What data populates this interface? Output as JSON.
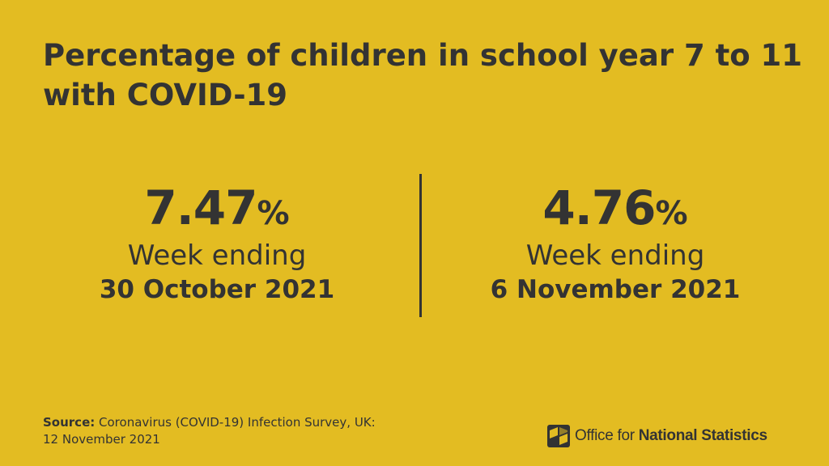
{
  "title": "Percentage of children in school year 7 to 11 with COVID-19",
  "stats": [
    {
      "value": "7.47",
      "unit": "%",
      "label": "Week ending",
      "date": "30 October 2021"
    },
    {
      "value": "4.76",
      "unit": "%",
      "label": "Week ending",
      "date": "6 November 2021"
    }
  ],
  "source": {
    "label": "Source:",
    "text": "Coronavirus (COVID-19) Infection Survey, UK:",
    "date": "12 November 2021"
  },
  "logo": {
    "text_regular": "Office for",
    "text_bold": "National Statistics",
    "icon": "ons-logo-icon"
  },
  "colors": {
    "background": "#e3bc22",
    "text": "#333333"
  }
}
